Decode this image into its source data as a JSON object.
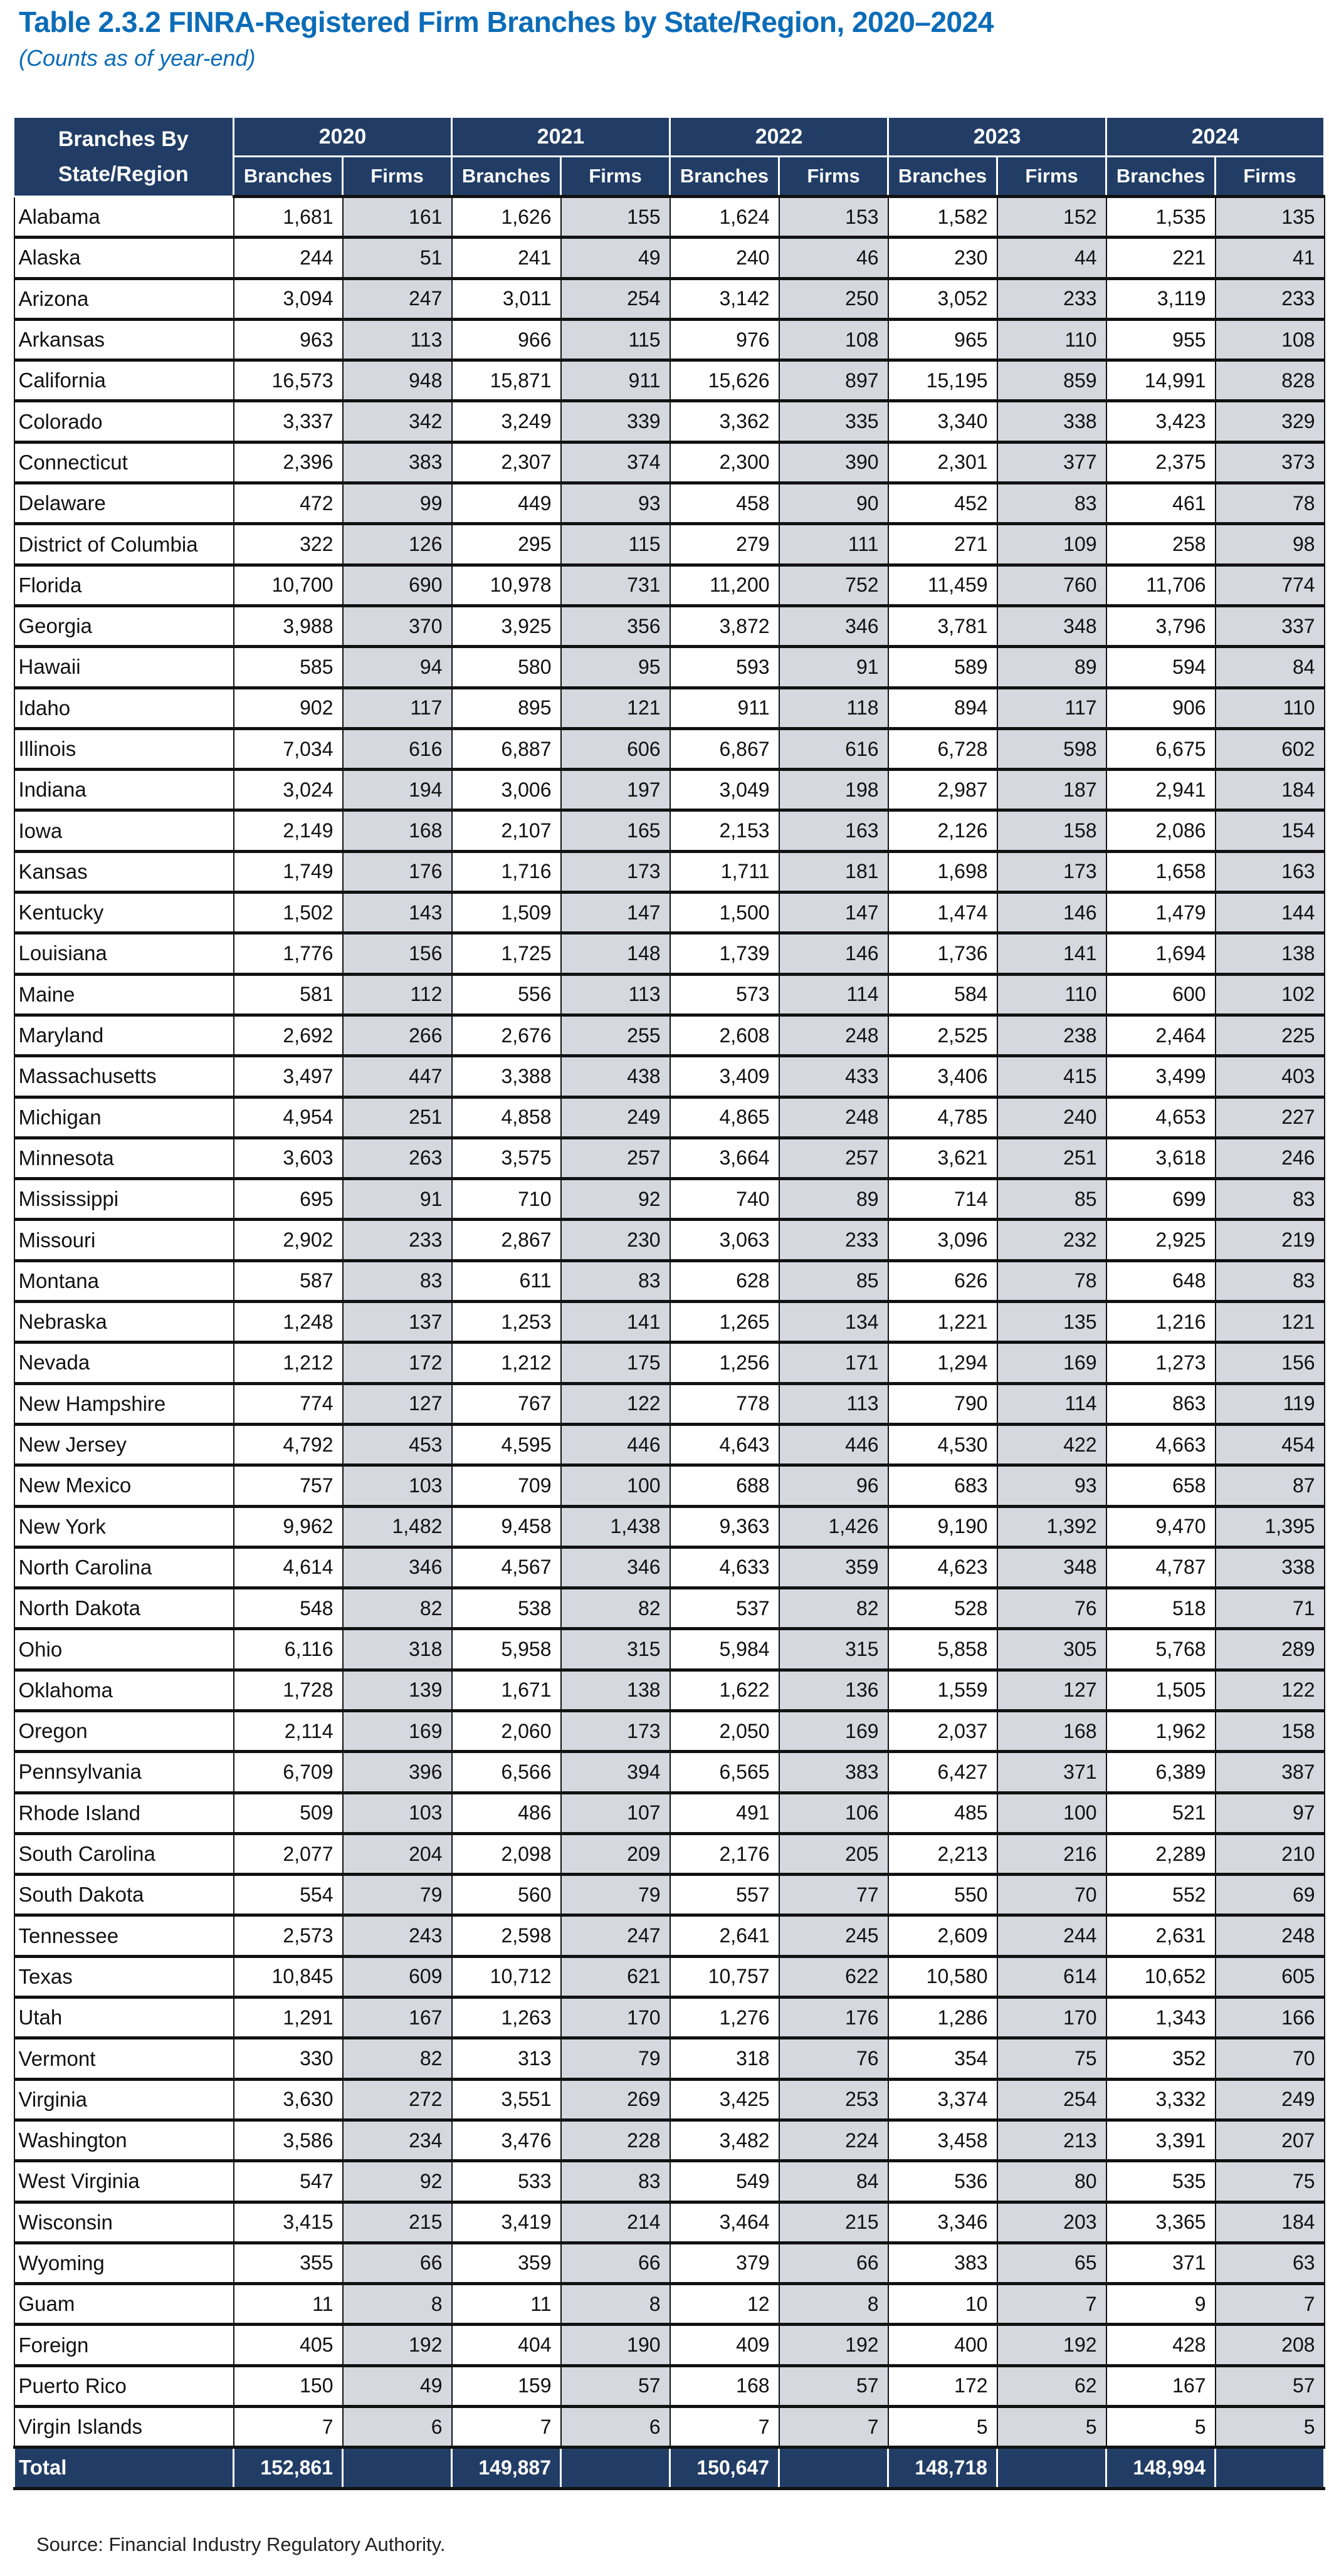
{
  "title": "Table 2.3.2 FINRA-Registered Firm Branches by State/Region, 2020–2024",
  "subtitle": "(Counts as of year-end)",
  "colors": {
    "title": "#0b6cb8",
    "header_bg": "#213d66",
    "firms_shade": "#d5d8df"
  },
  "table": {
    "corner_header": "Branches By State/Region",
    "years": [
      "2020",
      "2021",
      "2022",
      "2023",
      "2024"
    ],
    "sub_headers": [
      "Branches",
      "Firms"
    ],
    "rows": [
      [
        "Alabama",
        "1,681",
        "161",
        "1,626",
        "155",
        "1,624",
        "153",
        "1,582",
        "152",
        "1,535",
        "135"
      ],
      [
        "Alaska",
        "244",
        "51",
        "241",
        "49",
        "240",
        "46",
        "230",
        "44",
        "221",
        "41"
      ],
      [
        "Arizona",
        "3,094",
        "247",
        "3,011",
        "254",
        "3,142",
        "250",
        "3,052",
        "233",
        "3,119",
        "233"
      ],
      [
        "Arkansas",
        "963",
        "113",
        "966",
        "115",
        "976",
        "108",
        "965",
        "110",
        "955",
        "108"
      ],
      [
        "California",
        "16,573",
        "948",
        "15,871",
        "911",
        "15,626",
        "897",
        "15,195",
        "859",
        "14,991",
        "828"
      ],
      [
        "Colorado",
        "3,337",
        "342",
        "3,249",
        "339",
        "3,362",
        "335",
        "3,340",
        "338",
        "3,423",
        "329"
      ],
      [
        "Connecticut",
        "2,396",
        "383",
        "2,307",
        "374",
        "2,300",
        "390",
        "2,301",
        "377",
        "2,375",
        "373"
      ],
      [
        "Delaware",
        "472",
        "99",
        "449",
        "93",
        "458",
        "90",
        "452",
        "83",
        "461",
        "78"
      ],
      [
        "District of Columbia",
        "322",
        "126",
        "295",
        "115",
        "279",
        "111",
        "271",
        "109",
        "258",
        "98"
      ],
      [
        "Florida",
        "10,700",
        "690",
        "10,978",
        "731",
        "11,200",
        "752",
        "11,459",
        "760",
        "11,706",
        "774"
      ],
      [
        "Georgia",
        "3,988",
        "370",
        "3,925",
        "356",
        "3,872",
        "346",
        "3,781",
        "348",
        "3,796",
        "337"
      ],
      [
        "Hawaii",
        "585",
        "94",
        "580",
        "95",
        "593",
        "91",
        "589",
        "89",
        "594",
        "84"
      ],
      [
        "Idaho",
        "902",
        "117",
        "895",
        "121",
        "911",
        "118",
        "894",
        "117",
        "906",
        "110"
      ],
      [
        "Illinois",
        "7,034",
        "616",
        "6,887",
        "606",
        "6,867",
        "616",
        "6,728",
        "598",
        "6,675",
        "602"
      ],
      [
        "Indiana",
        "3,024",
        "194",
        "3,006",
        "197",
        "3,049",
        "198",
        "2,987",
        "187",
        "2,941",
        "184"
      ],
      [
        "Iowa",
        "2,149",
        "168",
        "2,107",
        "165",
        "2,153",
        "163",
        "2,126",
        "158",
        "2,086",
        "154"
      ],
      [
        "Kansas",
        "1,749",
        "176",
        "1,716",
        "173",
        "1,711",
        "181",
        "1,698",
        "173",
        "1,658",
        "163"
      ],
      [
        "Kentucky",
        "1,502",
        "143",
        "1,509",
        "147",
        "1,500",
        "147",
        "1,474",
        "146",
        "1,479",
        "144"
      ],
      [
        "Louisiana",
        "1,776",
        "156",
        "1,725",
        "148",
        "1,739",
        "146",
        "1,736",
        "141",
        "1,694",
        "138"
      ],
      [
        "Maine",
        "581",
        "112",
        "556",
        "113",
        "573",
        "114",
        "584",
        "110",
        "600",
        "102"
      ],
      [
        "Maryland",
        "2,692",
        "266",
        "2,676",
        "255",
        "2,608",
        "248",
        "2,525",
        "238",
        "2,464",
        "225"
      ],
      [
        "Massachusetts",
        "3,497",
        "447",
        "3,388",
        "438",
        "3,409",
        "433",
        "3,406",
        "415",
        "3,499",
        "403"
      ],
      [
        "Michigan",
        "4,954",
        "251",
        "4,858",
        "249",
        "4,865",
        "248",
        "4,785",
        "240",
        "4,653",
        "227"
      ],
      [
        "Minnesota",
        "3,603",
        "263",
        "3,575",
        "257",
        "3,664",
        "257",
        "3,621",
        "251",
        "3,618",
        "246"
      ],
      [
        "Mississippi",
        "695",
        "91",
        "710",
        "92",
        "740",
        "89",
        "714",
        "85",
        "699",
        "83"
      ],
      [
        "Missouri",
        "2,902",
        "233",
        "2,867",
        "230",
        "3,063",
        "233",
        "3,096",
        "232",
        "2,925",
        "219"
      ],
      [
        "Montana",
        "587",
        "83",
        "611",
        "83",
        "628",
        "85",
        "626",
        "78",
        "648",
        "83"
      ],
      [
        "Nebraska",
        "1,248",
        "137",
        "1,253",
        "141",
        "1,265",
        "134",
        "1,221",
        "135",
        "1,216",
        "121"
      ],
      [
        "Nevada",
        "1,212",
        "172",
        "1,212",
        "175",
        "1,256",
        "171",
        "1,294",
        "169",
        "1,273",
        "156"
      ],
      [
        "New Hampshire",
        "774",
        "127",
        "767",
        "122",
        "778",
        "113",
        "790",
        "114",
        "863",
        "119"
      ],
      [
        "New Jersey",
        "4,792",
        "453",
        "4,595",
        "446",
        "4,643",
        "446",
        "4,530",
        "422",
        "4,663",
        "454"
      ],
      [
        "New Mexico",
        "757",
        "103",
        "709",
        "100",
        "688",
        "96",
        "683",
        "93",
        "658",
        "87"
      ],
      [
        "New York",
        "9,962",
        "1,482",
        "9,458",
        "1,438",
        "9,363",
        "1,426",
        "9,190",
        "1,392",
        "9,470",
        "1,395"
      ],
      [
        "North Carolina",
        "4,614",
        "346",
        "4,567",
        "346",
        "4,633",
        "359",
        "4,623",
        "348",
        "4,787",
        "338"
      ],
      [
        "North Dakota",
        "548",
        "82",
        "538",
        "82",
        "537",
        "82",
        "528",
        "76",
        "518",
        "71"
      ],
      [
        "Ohio",
        "6,116",
        "318",
        "5,958",
        "315",
        "5,984",
        "315",
        "5,858",
        "305",
        "5,768",
        "289"
      ],
      [
        "Oklahoma",
        "1,728",
        "139",
        "1,671",
        "138",
        "1,622",
        "136",
        "1,559",
        "127",
        "1,505",
        "122"
      ],
      [
        "Oregon",
        "2,114",
        "169",
        "2,060",
        "173",
        "2,050",
        "169",
        "2,037",
        "168",
        "1,962",
        "158"
      ],
      [
        "Pennsylvania",
        "6,709",
        "396",
        "6,566",
        "394",
        "6,565",
        "383",
        "6,427",
        "371",
        "6,389",
        "387"
      ],
      [
        "Rhode Island",
        "509",
        "103",
        "486",
        "107",
        "491",
        "106",
        "485",
        "100",
        "521",
        "97"
      ],
      [
        "South Carolina",
        "2,077",
        "204",
        "2,098",
        "209",
        "2,176",
        "205",
        "2,213",
        "216",
        "2,289",
        "210"
      ],
      [
        "South Dakota",
        "554",
        "79",
        "560",
        "79",
        "557",
        "77",
        "550",
        "70",
        "552",
        "69"
      ],
      [
        "Tennessee",
        "2,573",
        "243",
        "2,598",
        "247",
        "2,641",
        "245",
        "2,609",
        "244",
        "2,631",
        "248"
      ],
      [
        "Texas",
        "10,845",
        "609",
        "10,712",
        "621",
        "10,757",
        "622",
        "10,580",
        "614",
        "10,652",
        "605"
      ],
      [
        "Utah",
        "1,291",
        "167",
        "1,263",
        "170",
        "1,276",
        "176",
        "1,286",
        "170",
        "1,343",
        "166"
      ],
      [
        "Vermont",
        "330",
        "82",
        "313",
        "79",
        "318",
        "76",
        "354",
        "75",
        "352",
        "70"
      ],
      [
        "Virginia",
        "3,630",
        "272",
        "3,551",
        "269",
        "3,425",
        "253",
        "3,374",
        "254",
        "3,332",
        "249"
      ],
      [
        "Washington",
        "3,586",
        "234",
        "3,476",
        "228",
        "3,482",
        "224",
        "3,458",
        "213",
        "3,391",
        "207"
      ],
      [
        "West Virginia",
        "547",
        "92",
        "533",
        "83",
        "549",
        "84",
        "536",
        "80",
        "535",
        "75"
      ],
      [
        "Wisconsin",
        "3,415",
        "215",
        "3,419",
        "214",
        "3,464",
        "215",
        "3,346",
        "203",
        "3,365",
        "184"
      ],
      [
        "Wyoming",
        "355",
        "66",
        "359",
        "66",
        "379",
        "66",
        "383",
        "65",
        "371",
        "63"
      ],
      [
        "Guam",
        "11",
        "8",
        "11",
        "8",
        "12",
        "8",
        "10",
        "7",
        "9",
        "7"
      ],
      [
        "Foreign",
        "405",
        "192",
        "404",
        "190",
        "409",
        "192",
        "400",
        "192",
        "428",
        "208"
      ],
      [
        "Puerto Rico",
        "150",
        "49",
        "159",
        "57",
        "168",
        "57",
        "172",
        "62",
        "167",
        "57"
      ],
      [
        "Virgin Islands",
        "7",
        "6",
        "7",
        "6",
        "7",
        "7",
        "5",
        "5",
        "5",
        "5"
      ]
    ],
    "total": [
      "Total",
      "152,861",
      "",
      "149,887",
      "",
      "150,647",
      "",
      "148,718",
      "",
      "148,994",
      ""
    ]
  },
  "source": "Source: Financial Industry Regulatory Authority."
}
